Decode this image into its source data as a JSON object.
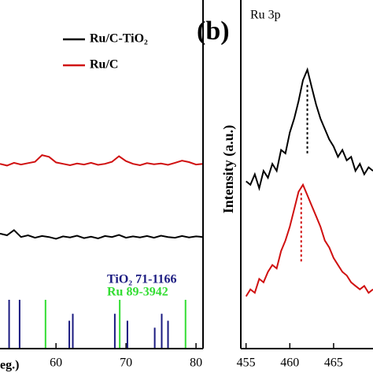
{
  "chart_data": [
    {
      "type": "line",
      "x_label": "eg.)",
      "x": [
        52,
        53,
        54,
        55,
        56,
        57,
        58,
        59,
        60,
        61,
        62,
        63,
        64,
        65,
        66,
        67,
        68,
        69,
        70,
        71,
        72,
        73,
        74,
        75,
        76,
        77,
        78,
        79,
        80,
        81
      ],
      "xlim": [
        52,
        81
      ],
      "ylim": [
        0,
        100
      ],
      "xticks": [
        60,
        70,
        80
      ],
      "series": [
        {
          "name": "Ru/C-TiO₂",
          "color": "#000000",
          "values": [
            33,
            32.5,
            34,
            32,
            32.5,
            31.8,
            32.3,
            32,
            31.5,
            32.2,
            31.9,
            32.4,
            31.7,
            32.1,
            31.6,
            32.3,
            32,
            32.6,
            31.8,
            32.2,
            31.9,
            32.3,
            31.8,
            32.4,
            32,
            31.8,
            32.3,
            31.9,
            32.2,
            32
          ]
        },
        {
          "name": "Ru/C",
          "color": "#d01010",
          "values": [
            53,
            52.5,
            53.3,
            52.8,
            53.2,
            53.6,
            55.5,
            55,
            53.4,
            53,
            52.6,
            53.1,
            52.8,
            53.3,
            52.7,
            53,
            53.6,
            55.2,
            53.8,
            53,
            52.6,
            53.2,
            52.9,
            53.1,
            52.7,
            53.3,
            53.9,
            53.5,
            52.8,
            53
          ]
        }
      ],
      "reference_sets": [
        {
          "name": "TiO₂ 71-1166",
          "color": "#1a1a80",
          "x": [
            53.3,
            54.8,
            61.9,
            62.4,
            68.4,
            70.2,
            74.1,
            75.1,
            76.0
          ],
          "heights": [
            14,
            14,
            8,
            10,
            10,
            8,
            6,
            10,
            8
          ]
        },
        {
          "name": "Ru 89-3942",
          "color": "#33dd33",
          "x": [
            58.5,
            69.1,
            78.5
          ],
          "heights": [
            14,
            14,
            14
          ]
        }
      ]
    },
    {
      "type": "line",
      "panel_label": "(b)",
      "title": "Ru 3p",
      "y_label": "Intensity (a.u.)",
      "x": [
        455,
        455.5,
        456,
        456.5,
        457,
        457.5,
        458,
        458.5,
        459,
        459.5,
        460,
        460.5,
        461,
        461.5,
        462,
        462.5,
        463,
        463.5,
        464,
        464.5,
        465,
        465.5,
        466,
        466.5,
        467,
        467.5,
        468,
        468.5,
        469,
        469.5
      ],
      "xlim": [
        454.4,
        469.5
      ],
      "ylim": [
        0,
        100
      ],
      "xticks": [
        455,
        460,
        465
      ],
      "series": [
        {
          "color": "#000000",
          "values": [
            48,
            47,
            50,
            46,
            51,
            49,
            53,
            51,
            57,
            56,
            62,
            66,
            71,
            77,
            80,
            75,
            70,
            66,
            63,
            60,
            58,
            55,
            57,
            54,
            55,
            51,
            53,
            50,
            52,
            51
          ]
        },
        {
          "color": "#d01010",
          "values": [
            15,
            17,
            16,
            20,
            19,
            22,
            24,
            23,
            28,
            31,
            35,
            40,
            45,
            47,
            44,
            41,
            38,
            35,
            31,
            29,
            26,
            24,
            22,
            21,
            19,
            18,
            17,
            18,
            16,
            17
          ]
        }
      ],
      "dashed_lines": [
        {
          "x": 462,
          "y": [
            56,
            76
          ],
          "color": "#000000"
        },
        {
          "x": 461.3,
          "y": [
            25,
            45
          ],
          "color": "#d01010"
        }
      ]
    }
  ]
}
